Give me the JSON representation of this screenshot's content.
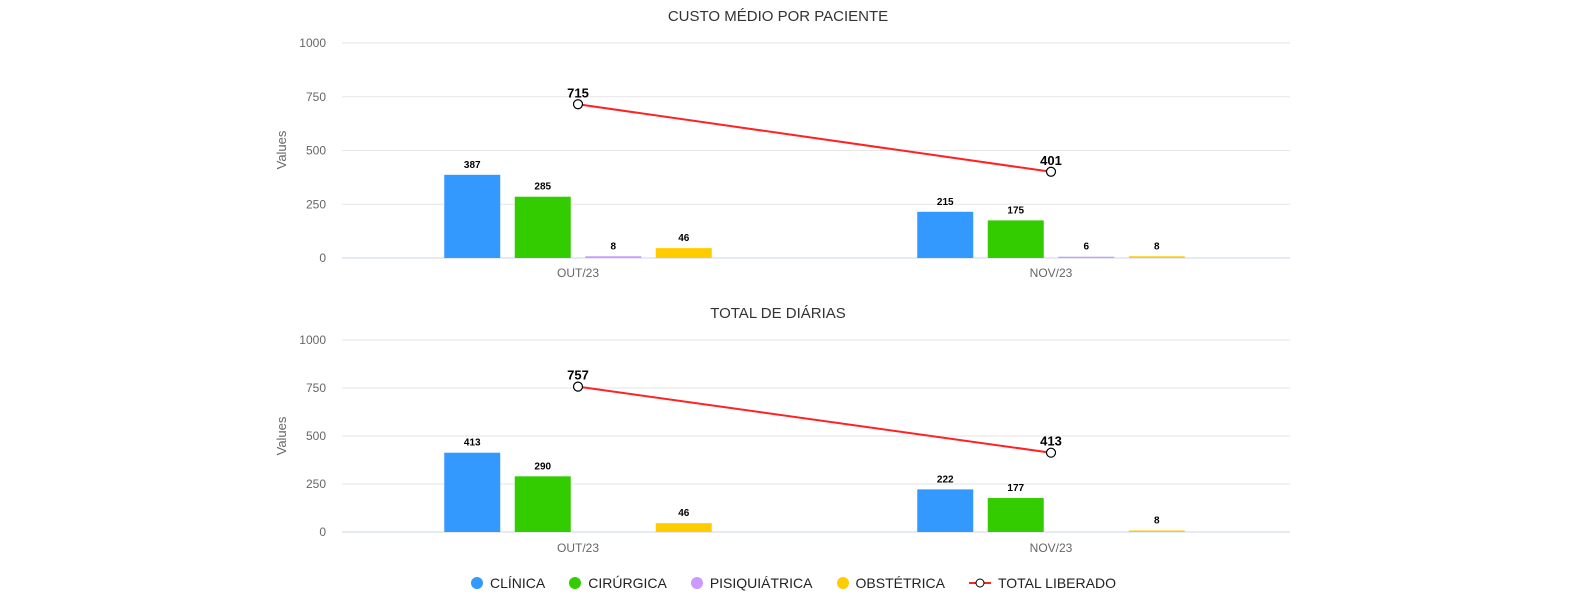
{
  "colors": {
    "clinica": "#3399ff",
    "cirurgica": "#33cc00",
    "psiquiatrica": "#cc99ff",
    "obstetrica": "#ffcc00",
    "total": "#ff2222",
    "grid": "#e6e6e6",
    "axis_text": "#666666"
  },
  "legend": [
    {
      "key": "clinica",
      "label": "CLÍNICA",
      "kind": "dot"
    },
    {
      "key": "cirurgica",
      "label": "CIRÚRGICA",
      "kind": "dot"
    },
    {
      "key": "psiquiatrica",
      "label": "PISIQUIÁTRICA",
      "kind": "dot"
    },
    {
      "key": "obstetrica",
      "label": "OBSTÉTRICA",
      "kind": "dot"
    },
    {
      "key": "total",
      "label": "TOTAL LIBERADO",
      "kind": "line"
    }
  ],
  "chart_data": [
    {
      "type": "bar",
      "title": "CUSTO MÉDIO POR PACIENTE",
      "ylabel": "Values",
      "ylim": [
        0,
        1000
      ],
      "yticks": [
        0,
        250,
        500,
        750,
        1000
      ],
      "categories": [
        "OUT/23",
        "NOV/23"
      ],
      "series": [
        {
          "key": "clinica",
          "name": "CLÍNICA",
          "values": [
            387,
            215
          ]
        },
        {
          "key": "cirurgica",
          "name": "CIRÚRGICA",
          "values": [
            285,
            175
          ]
        },
        {
          "key": "psiquiatrica",
          "name": "PISIQUIÁTRICA",
          "values": [
            8,
            6
          ]
        },
        {
          "key": "obstetrica",
          "name": "OBSTÉTRICA",
          "values": [
            46,
            8
          ]
        }
      ],
      "line_series": {
        "key": "total",
        "name": "TOTAL LIBERADO",
        "values": [
          715,
          401
        ]
      },
      "grid": true,
      "legend_position": "bottom"
    },
    {
      "type": "bar",
      "title": "TOTAL DE DIÁRIAS",
      "ylabel": "Values",
      "ylim": [
        0,
        1000
      ],
      "yticks": [
        0,
        250,
        500,
        750,
        1000
      ],
      "categories": [
        "OUT/23",
        "NOV/23"
      ],
      "series": [
        {
          "key": "clinica",
          "name": "CLÍNICA",
          "values": [
            413,
            222
          ]
        },
        {
          "key": "cirurgica",
          "name": "CIRÚRGICA",
          "values": [
            290,
            177
          ]
        },
        {
          "key": "psiquiatrica",
          "name": "PISIQUIÁTRICA",
          "values": [
            null,
            null
          ]
        },
        {
          "key": "obstetrica",
          "name": "OBSTÉTRICA",
          "values": [
            46,
            8
          ]
        }
      ],
      "line_series": {
        "key": "total",
        "name": "TOTAL LIBERADO",
        "values": [
          757,
          413
        ]
      },
      "grid": true,
      "legend_position": "bottom"
    }
  ]
}
